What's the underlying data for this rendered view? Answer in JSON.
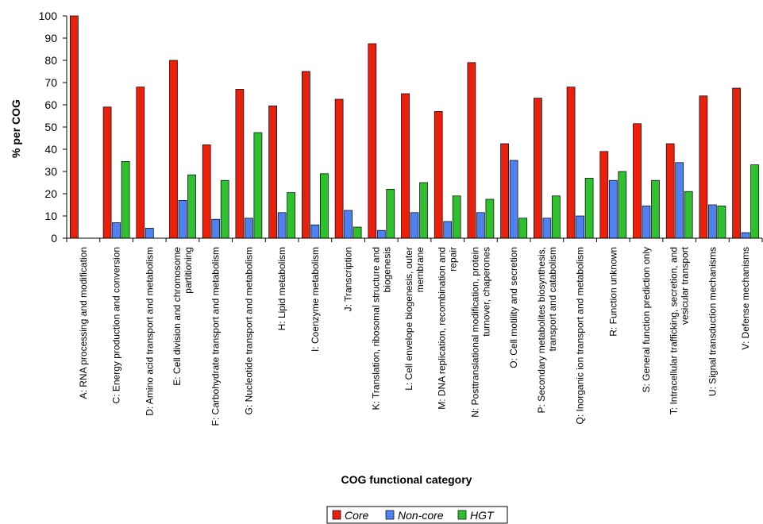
{
  "chart_data": {
    "type": "bar",
    "ylabel": "% per COG",
    "xlabel": "COG functional category",
    "ylim": [
      0,
      100
    ],
    "yticks": [
      "0",
      "10",
      "20",
      "30",
      "40",
      "50",
      "60",
      "70",
      "80",
      "90",
      "100"
    ],
    "grid": false,
    "legend_position": "bottom-center",
    "categories": [
      [
        "A: RNA processing and modification"
      ],
      [
        "C: Energy production and conversion"
      ],
      [
        "D: Amino acid transport and metabolism"
      ],
      [
        "E: Cell division and chromosome",
        "partitioning"
      ],
      [
        "F: Carbohydrate transport and metabolism"
      ],
      [
        "G: Nucleotide transport and metabolism"
      ],
      [
        "H: Lipid metabolism"
      ],
      [
        "I: Coenzyme metabolism"
      ],
      [
        "J: Transcription"
      ],
      [
        "K: Translation, ribosomal structure and",
        "biogenesis"
      ],
      [
        "L: Cell envelope biogenesis, outer",
        "membrane"
      ],
      [
        "M: DNA replication, recombination and",
        "repair"
      ],
      [
        "N: Posttranslational modification, protein",
        "turnover, chaperones"
      ],
      [
        "O: Cell motility and secretion"
      ],
      [
        "P: Secondary metabolites biosynthesis,",
        "transport and catabolism"
      ],
      [
        "Q: Inorganic ion transport and metabolism"
      ],
      [
        "R: Function unknown"
      ],
      [
        "S: General function prediction only"
      ],
      [
        "T: Intracellular trafficking, secretion, and",
        "vesicular transport"
      ],
      [
        "U: Signal transduction mechanisms"
      ],
      [
        "V: Defense mechanisms"
      ]
    ],
    "series": [
      {
        "name": "Core",
        "color": "#e8200c",
        "values": [
          100,
          59,
          68,
          80,
          42,
          67,
          59.5,
          75,
          62.5,
          87.5,
          65,
          57,
          79,
          42.5,
          63,
          68,
          39,
          51.5,
          42.5,
          64,
          67.5
        ]
      },
      {
        "name": "Non-core",
        "color": "#4f82f0",
        "values": [
          0,
          7,
          4.5,
          17,
          8.5,
          9,
          11.5,
          6,
          12.5,
          3.5,
          11.5,
          7.5,
          11.5,
          35,
          9,
          10,
          26,
          14.5,
          34,
          15,
          2.5
        ]
      },
      {
        "name": "HGT",
        "color": "#2ec02e",
        "values": [
          0,
          34.5,
          0,
          28.5,
          26,
          47.5,
          20.5,
          29,
          5,
          22,
          25,
          19,
          17.5,
          9,
          19,
          27,
          30,
          26,
          21,
          14.5,
          33
        ]
      }
    ]
  }
}
